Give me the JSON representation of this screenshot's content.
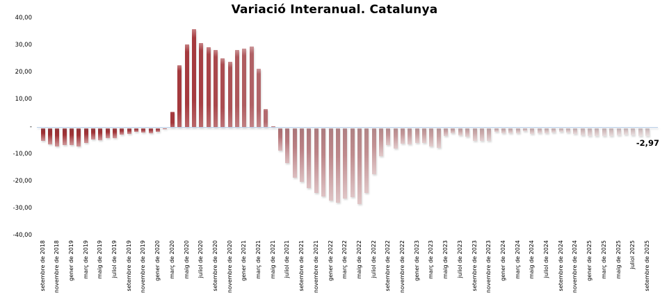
{
  "title": "Variació Interanual. Catalunya",
  "chart_data": {
    "type": "bar",
    "title": "Variació Interanual. Catalunya",
    "x_range": "setembre de 2018 – setembre de 2025 (monthly bars, tick label every 2 months)",
    "x_tick_labels": [
      "setembre de 2018",
      "novembre de 2018",
      "gener de 2019",
      "març de 2019",
      "maig de 2019",
      "juliol de 2019",
      "setembre de 2019",
      "novembre de 2019",
      "gener de 2020",
      "març de 2020",
      "maig de 2020",
      "juliol de 2020",
      "setembre de 2020",
      "novembre de 2020",
      "gener de 2021",
      "març de 2021",
      "maig de 2021",
      "juliol de 2021",
      "setembre de 2021",
      "novembre de 2021",
      "gener de 2022",
      "març de 2022",
      "maig de 2022",
      "juliol de 2022",
      "setembre de 2022",
      "novembre de 2022",
      "gener de 2023",
      "març de 2023",
      "maig de 2023",
      "juliol de 2023",
      "setembre de 2023",
      "novembre de 2023",
      "gener de 2024",
      "març de 2024",
      "maig de 2024",
      "juliol de 2024",
      "setembre de 2024",
      "novembre de 2024",
      "gener de 2025",
      "març de 2025",
      "maig de 2025",
      "juliol 2025",
      "setembre de 2025"
    ],
    "y_tick_labels": [
      "40,00",
      "30,00",
      "20,00",
      "10,00",
      "-",
      "-10,00",
      "-20,00",
      "-30,00",
      "-40,00"
    ],
    "ylim": [
      -40,
      40
    ],
    "grid": false,
    "values": [
      -4.7,
      -6.1,
      -6.8,
      -6.4,
      -6.2,
      -6.7,
      -5.4,
      -4.3,
      -4.4,
      -3.6,
      -3.8,
      -2.5,
      -2.3,
      -1.4,
      -1.7,
      -1.8,
      -1.5,
      -0.5,
      5.9,
      22.9,
      30.7,
      36.3,
      31.2,
      29.8,
      28.7,
      25.6,
      24.4,
      28.6,
      29.2,
      29.9,
      21.6,
      6.8,
      0.5,
      -8.3,
      -13.0,
      -18.4,
      -20.0,
      -22.3,
      -24.0,
      -25.3,
      -26.8,
      -27.6,
      -26.2,
      -25.5,
      -28.1,
      -24.0,
      -17.1,
      -10.3,
      -6.3,
      -7.6,
      -5.9,
      -6.1,
      -5.5,
      -5.5,
      -6.8,
      -7.2,
      -3.0,
      -2.0,
      -2.6,
      -3.3,
      -4.8,
      -4.8,
      -4.8,
      -1.3,
      -2.0,
      -2.0,
      -1.8,
      -1.2,
      -2.2,
      -2.0,
      -1.9,
      -1.6,
      -1.4,
      -1.6,
      -2.2,
      -2.6,
      -2.9,
      -2.9,
      -3.0,
      -3.0,
      -2.7,
      -2.4,
      -2.7,
      -2.9,
      -2.97
    ],
    "end_label": "-2,97",
    "colors": {
      "axis_line": "#b9cfe8",
      "bar_color_stops": [
        [
          0.0,
          "#9e3135"
        ],
        [
          0.25,
          "#a53a3e"
        ],
        [
          0.42,
          "#b97f83"
        ],
        [
          0.55,
          "#c29193"
        ],
        [
          0.75,
          "#ccadae"
        ],
        [
          1.0,
          "#d6c4c5"
        ]
      ],
      "title_text": "#000000",
      "label_text": "#000000"
    }
  }
}
